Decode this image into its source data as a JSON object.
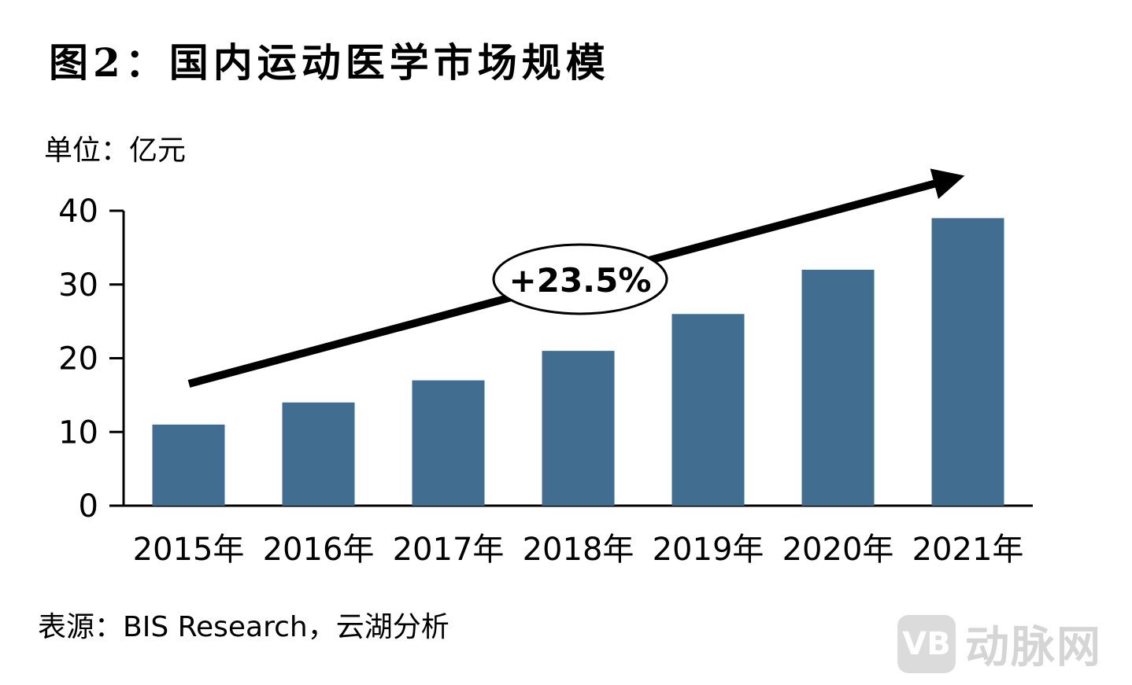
{
  "header": {
    "title": "图2：国内运动医学市场规模",
    "unit": "单位：亿元"
  },
  "footer": {
    "source": "表源：BIS Research，云湖分析"
  },
  "watermark": {
    "logo": "VB",
    "text": "动脉网"
  },
  "chart_data": {
    "type": "bar",
    "title": "图2：国内运动医学市场规模",
    "ylabel": "单位：亿元",
    "xlabel": "",
    "categories": [
      "2015年",
      "2016年",
      "2017年",
      "2018年",
      "2019年",
      "2020年",
      "2021年"
    ],
    "values": [
      11,
      14,
      17,
      21,
      26,
      32,
      39
    ],
    "ylim": [
      0,
      40
    ],
    "yticks": [
      0,
      10,
      20,
      30,
      40
    ],
    "bar_color": "#416E90",
    "grid": false,
    "annotation": {
      "text": "+23.5%",
      "type": "growth-arrow"
    }
  }
}
